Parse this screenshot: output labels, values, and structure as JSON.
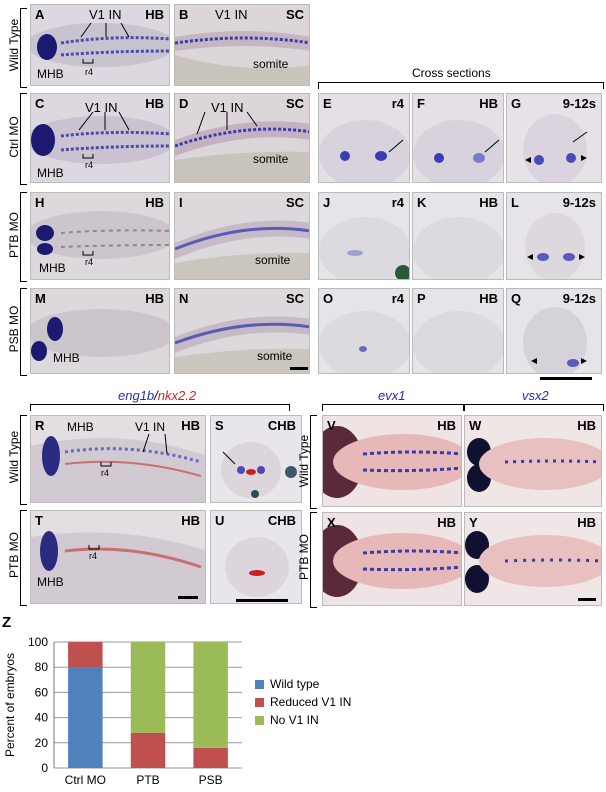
{
  "row_labels": {
    "wild_type": "Wild Type",
    "ctrl_mo": "Ctrl MO",
    "ptb_mo": "PTB MO",
    "psb_mo": "PSB MO"
  },
  "cross_sections_label": "Cross sections",
  "panels": {
    "A": {
      "letter": "A",
      "region": "HB",
      "annot": [
        "V1 IN",
        "MHB",
        "r4"
      ]
    },
    "B": {
      "letter": "B",
      "region": "SC",
      "annot": [
        "V1 IN",
        "somite"
      ]
    },
    "C": {
      "letter": "C",
      "region": "HB",
      "annot": [
        "V1 IN",
        "MHB",
        "r4"
      ]
    },
    "D": {
      "letter": "D",
      "region": "SC",
      "annot": [
        "V1 IN",
        "somite"
      ]
    },
    "E": {
      "letter": "E",
      "region": "r4"
    },
    "F": {
      "letter": "F",
      "region": "HB"
    },
    "G": {
      "letter": "G",
      "region": "9-12s"
    },
    "H": {
      "letter": "H",
      "region": "HB",
      "annot": [
        "MHB",
        "r4"
      ]
    },
    "I": {
      "letter": "I",
      "region": "SC",
      "annot": [
        "somite"
      ]
    },
    "J": {
      "letter": "J",
      "region": "r4"
    },
    "K": {
      "letter": "K",
      "region": "HB"
    },
    "L": {
      "letter": "L",
      "region": "9-12s"
    },
    "M": {
      "letter": "M",
      "region": "HB",
      "annot": [
        "MHB"
      ]
    },
    "N": {
      "letter": "N",
      "region": "SC",
      "annot": [
        "somite"
      ]
    },
    "O": {
      "letter": "O",
      "region": "r4"
    },
    "P": {
      "letter": "P",
      "region": "HB"
    },
    "Q": {
      "letter": "Q",
      "region": "9-12s"
    },
    "R": {
      "letter": "R",
      "region": "HB",
      "annot": [
        "MHB",
        "V1 IN",
        "r4"
      ]
    },
    "S": {
      "letter": "S",
      "region": "CHB"
    },
    "T": {
      "letter": "T",
      "region": "HB",
      "annot": [
        "r4",
        "MHB"
      ]
    },
    "U": {
      "letter": "U",
      "region": "CHB"
    },
    "V": {
      "letter": "V",
      "region": "HB"
    },
    "W": {
      "letter": "W",
      "region": "HB"
    },
    "X": {
      "letter": "X",
      "region": "HB"
    },
    "Y": {
      "letter": "Y",
      "region": "HB"
    }
  },
  "gene_labels": {
    "eng1b": "eng1b",
    "slash": "/",
    "nkx22": "nkx2.2",
    "evx1": "evx1",
    "vsx2": "vsx2"
  },
  "colors": {
    "eng1b": "#2a2ab8",
    "nkx22": "#d42020",
    "evx1": "#2a2ab8",
    "vsx2": "#2a2ab8",
    "wild_type": "#4f81bd",
    "reduced": "#c0504d",
    "no_v1": "#9bbb59"
  },
  "chart_letter": "Z",
  "chart_data": {
    "type": "bar",
    "stacked": true,
    "categories": [
      "Ctrl MO",
      "PTB",
      "PSB"
    ],
    "series": [
      {
        "name": "Wild type",
        "values": [
          80,
          0,
          0
        ]
      },
      {
        "name": "Reduced V1 IN",
        "values": [
          20,
          28,
          16
        ]
      },
      {
        "name": "No V1 IN",
        "values": [
          0,
          72,
          84
        ]
      }
    ],
    "ylabel": "Percent of embryos",
    "ylim": [
      0,
      100
    ],
    "yticks": [
      0,
      20,
      40,
      60,
      80,
      100
    ],
    "grid": true,
    "legend": "right"
  }
}
